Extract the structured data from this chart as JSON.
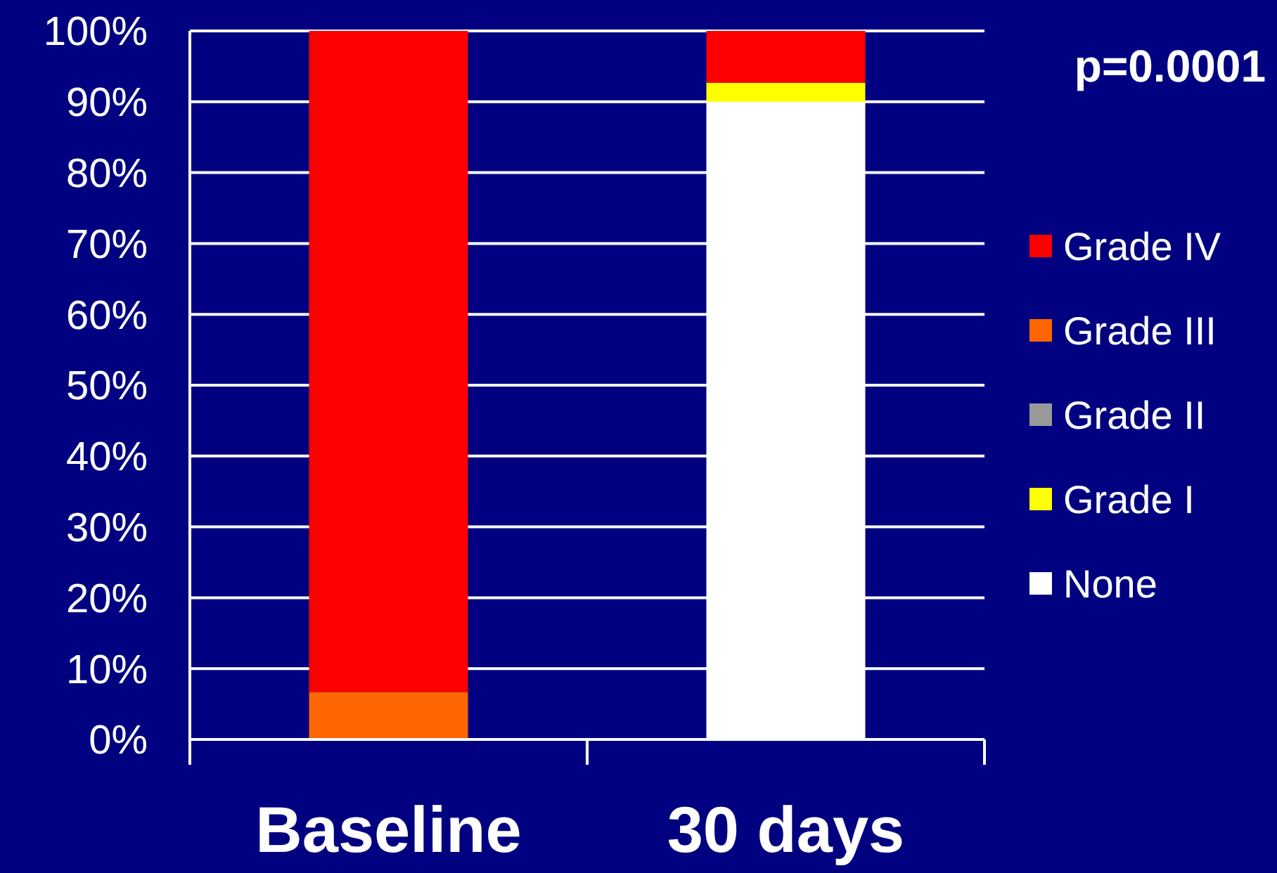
{
  "chart_data": {
    "type": "bar",
    "stacked": true,
    "categories": [
      "Baseline",
      "30 days"
    ],
    "series": [
      {
        "name": "None",
        "color": "#ffffff",
        "values": [
          0,
          90
        ]
      },
      {
        "name": "Grade I",
        "color": "#ffff00",
        "values": [
          0,
          2.7
        ]
      },
      {
        "name": "Grade II",
        "color": "#999999",
        "values": [
          0,
          0
        ]
      },
      {
        "name": "Grade III",
        "color": "#ff6600",
        "values": [
          6.7,
          0
        ]
      },
      {
        "name": "Grade IV",
        "color": "#ff0000",
        "values": [
          93.3,
          7.3
        ]
      }
    ],
    "ylim": [
      0,
      100
    ],
    "yticks": [
      {
        "value": 0,
        "label": "0%"
      },
      {
        "value": 10,
        "label": "10%"
      },
      {
        "value": 20,
        "label": "20%"
      },
      {
        "value": 30,
        "label": "30%"
      },
      {
        "value": 40,
        "label": "40%"
      },
      {
        "value": 50,
        "label": "50%"
      },
      {
        "value": 60,
        "label": "60%"
      },
      {
        "value": 70,
        "label": "70%"
      },
      {
        "value": 80,
        "label": "80%"
      },
      {
        "value": 90,
        "label": "90%"
      },
      {
        "value": 100,
        "label": "100%"
      }
    ],
    "grid": "y",
    "legend": "right",
    "annotations": [
      "p=0.0001"
    ]
  }
}
